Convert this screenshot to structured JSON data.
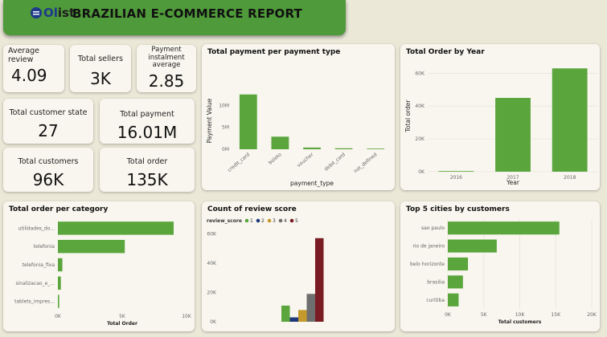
{
  "header": {
    "logo_prefix": "Ol",
    "logo_suffix": "ist",
    "title": "BRAZILIAN E-COMMERCE REPORT"
  },
  "kpis": {
    "avg_review": {
      "label": "Average review",
      "value": "4.09"
    },
    "total_sellers": {
      "label": "Total sellers",
      "value": "3K"
    },
    "instalment": {
      "label": "Payment instalment average",
      "value": "2.85"
    },
    "customer_state": {
      "label": "Total customer state",
      "value": "27"
    },
    "total_payment": {
      "label": "Total payment",
      "value": "16.01M"
    },
    "total_customers": {
      "label": "Total customers",
      "value": "96K"
    },
    "total_order": {
      "label": "Total order",
      "value": "135K"
    }
  },
  "colors": {
    "bar": "#5aa53c",
    "background": "#ebe8d8",
    "card": "#f8f6ee",
    "banner": "#4f9a3a"
  },
  "chart_data": [
    {
      "id": "payment",
      "type": "bar",
      "title": "Total payment per payment type",
      "xlabel": "payment_type",
      "ylabel": "Payment Value",
      "categories": [
        "credit_card",
        "boleto",
        "voucher",
        "debit_card",
        "not_defined"
      ],
      "values": [
        12500000,
        2870000,
        380000,
        220000,
        0
      ],
      "ylim": [
        0,
        13000000
      ],
      "yticks": [
        {
          "v": 0,
          "label": "0M"
        },
        {
          "v": 5000000,
          "label": "5M"
        },
        {
          "v": 10000000,
          "label": "10M"
        }
      ]
    },
    {
      "id": "byyear",
      "type": "bar",
      "title": "Total Order by Year",
      "xlabel": "Year",
      "ylabel": "Total order",
      "categories": [
        "2016",
        "2017",
        "2018"
      ],
      "values": [
        400,
        45000,
        63000
      ],
      "ylim": [
        0,
        68000
      ],
      "yticks": [
        {
          "v": 0,
          "label": "0K"
        },
        {
          "v": 20000,
          "label": "20K"
        },
        {
          "v": 40000,
          "label": "40K"
        },
        {
          "v": 60000,
          "label": "60K"
        }
      ]
    },
    {
      "id": "category",
      "type": "bar",
      "orientation": "horizontal",
      "title": "Total order per category",
      "xlabel": "Total Order",
      "categories": [
        "utilidades_do...",
        "telefonia",
        "telefonia_fixa",
        "sinalizacao_e_...",
        "tablets_impres..."
      ],
      "values": [
        9000,
        5200,
        350,
        230,
        100
      ],
      "xlim": [
        0,
        10000
      ],
      "xticks": [
        {
          "v": 0,
          "label": "0K"
        },
        {
          "v": 5000,
          "label": "5K"
        },
        {
          "v": 10000,
          "label": "10K"
        }
      ]
    },
    {
      "id": "review",
      "type": "bar",
      "title": "Count of review score",
      "legend_title": "review_score",
      "series": [
        {
          "name": "1",
          "color": "#5aa53c",
          "value": 11000
        },
        {
          "name": "2",
          "color": "#1f3a7a",
          "value": 3000
        },
        {
          "name": "3",
          "color": "#c49a2c",
          "value": 8000
        },
        {
          "name": "4",
          "color": "#6e6e6e",
          "value": 19000
        },
        {
          "name": "5",
          "color": "#7a1c24",
          "value": 57000
        }
      ],
      "ylim": [
        0,
        64000
      ],
      "yticks": [
        {
          "v": 0,
          "label": "0K"
        },
        {
          "v": 20000,
          "label": "20K"
        },
        {
          "v": 40000,
          "label": "40K"
        },
        {
          "v": 60000,
          "label": "60K"
        }
      ]
    },
    {
      "id": "cities",
      "type": "bar",
      "orientation": "horizontal",
      "title": "Top 5 cities by customers",
      "xlabel": "Total customers",
      "categories": [
        "sao paulo",
        "rio de janeiro",
        "belo horizonte",
        "brasilia",
        "curitiba"
      ],
      "values": [
        15500,
        6800,
        2800,
        2100,
        1500
      ],
      "xlim": [
        0,
        20000
      ],
      "xticks": [
        {
          "v": 0,
          "label": "0K"
        },
        {
          "v": 5000,
          "label": "5K"
        },
        {
          "v": 10000,
          "label": "10K"
        },
        {
          "v": 15000,
          "label": "15K"
        },
        {
          "v": 20000,
          "label": "20K"
        }
      ]
    }
  ]
}
